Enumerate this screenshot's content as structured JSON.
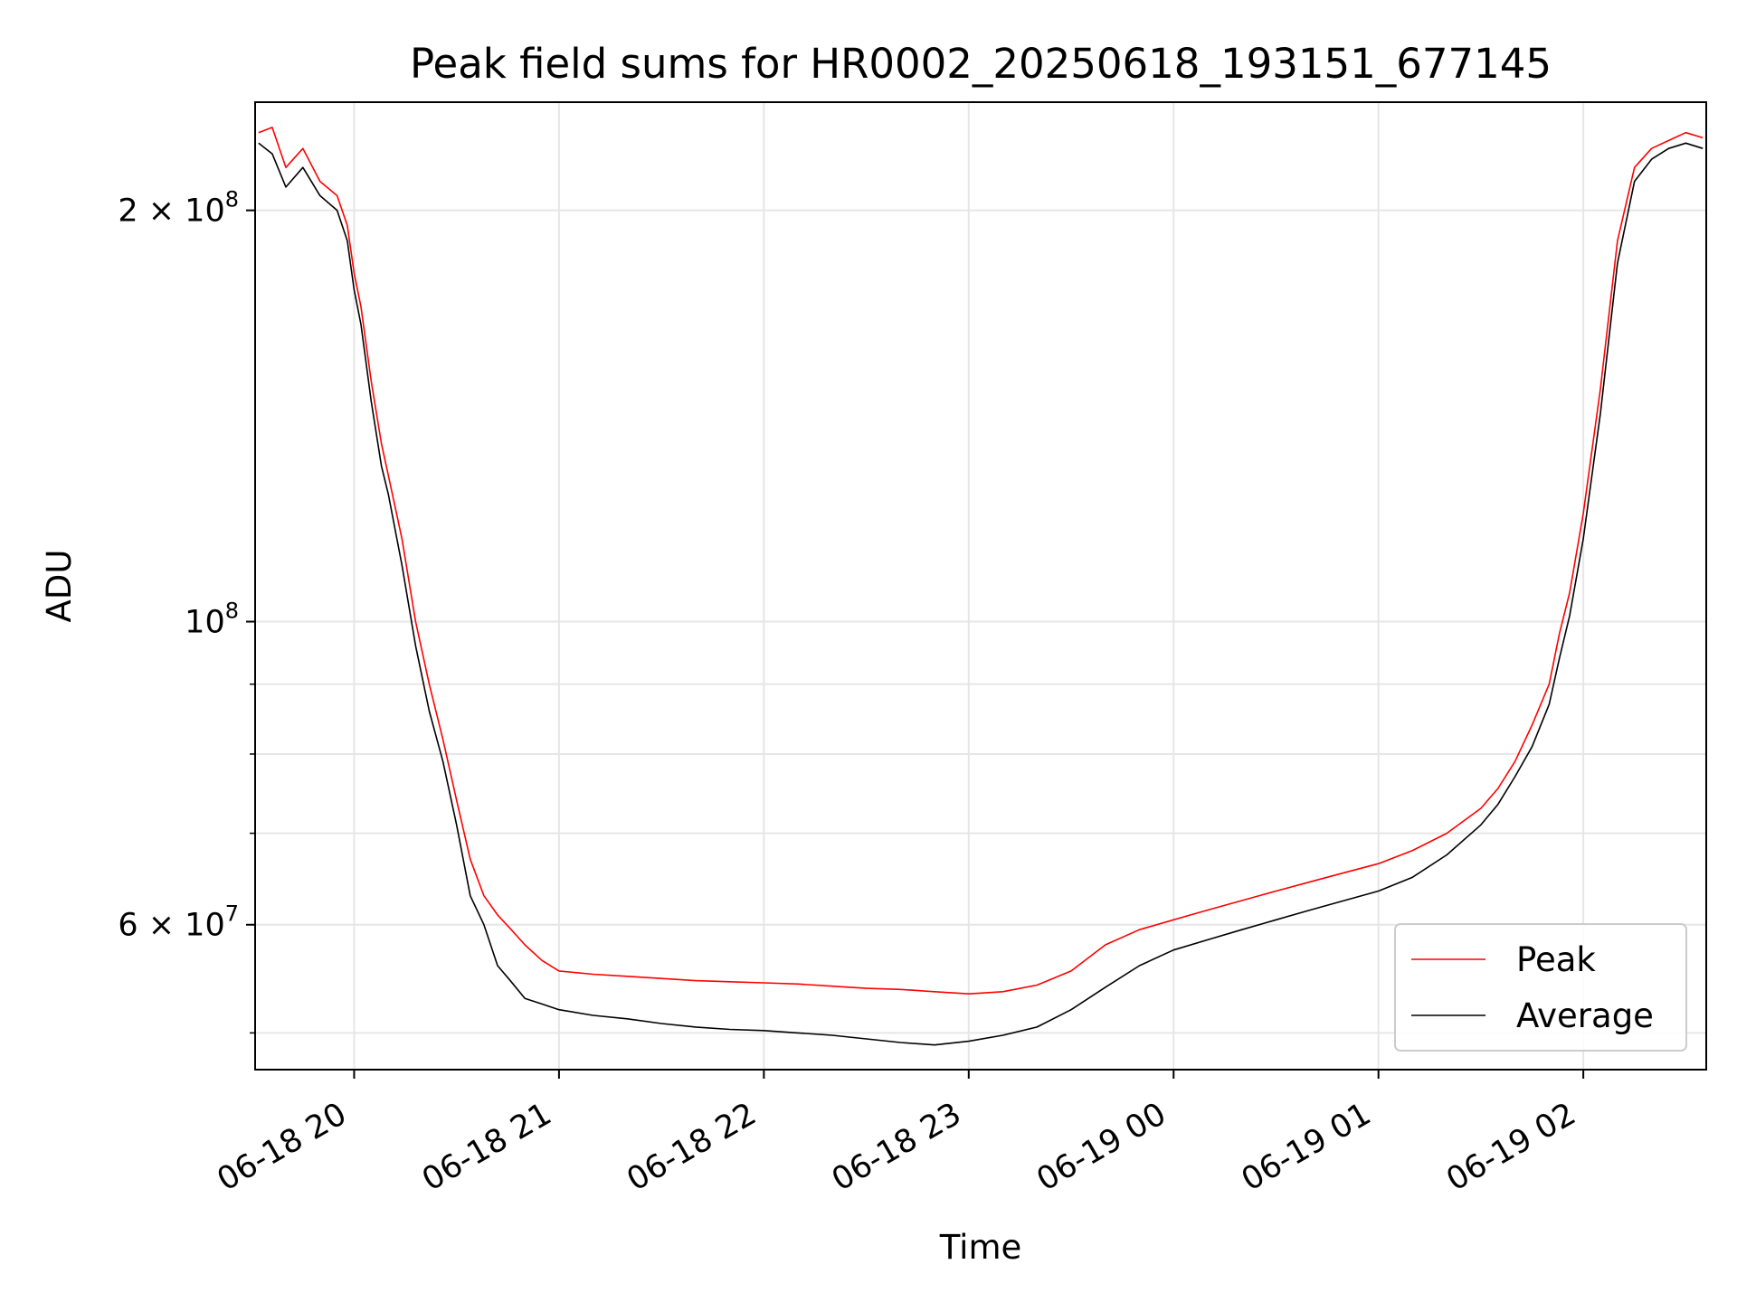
{
  "chart_data": {
    "type": "line",
    "title": "Peak field sums for HR0002_20250618_193151_677145",
    "xlabel": "Time",
    "ylabel": "ADU",
    "yscale": "log",
    "xlim": [
      "2025-06-18T19:31",
      "2025-06-19T02:36"
    ],
    "ylim": [
      47000000,
      240000000
    ],
    "grid": true,
    "legend_position": "lower-right",
    "x_tick_labels": [
      "06-18 20",
      "06-18 21",
      "06-18 22",
      "06-18 23",
      "06-19 00",
      "06-19 01",
      "06-19 02"
    ],
    "x_ticks": [
      "2025-06-18T20:00",
      "2025-06-18T21:00",
      "2025-06-18T22:00",
      "2025-06-18T23:00",
      "2025-06-19T00:00",
      "2025-06-19T01:00",
      "2025-06-19T02:00"
    ],
    "y_ticks": [
      {
        "value": 60000000,
        "label_base": "6",
        "label_exp": "7"
      },
      {
        "value": 100000000,
        "label_base": "",
        "label_exp": "8"
      },
      {
        "value": 200000000,
        "label_base": "2",
        "label_exp": "8"
      }
    ],
    "y_minor_ticks": [
      50000000,
      70000000,
      80000000,
      90000000
    ],
    "series": [
      {
        "name": "Peak",
        "color": "#ff0000",
        "x": [
          "2025-06-18T19:32",
          "2025-06-18T19:36",
          "2025-06-18T19:40",
          "2025-06-18T19:45",
          "2025-06-18T19:50",
          "2025-06-18T19:55",
          "2025-06-18T19:58",
          "2025-06-18T20:00",
          "2025-06-18T20:02",
          "2025-06-18T20:05",
          "2025-06-18T20:08",
          "2025-06-18T20:10",
          "2025-06-18T20:14",
          "2025-06-18T20:18",
          "2025-06-18T20:22",
          "2025-06-18T20:26",
          "2025-06-18T20:30",
          "2025-06-18T20:34",
          "2025-06-18T20:38",
          "2025-06-18T20:42",
          "2025-06-18T20:46",
          "2025-06-18T20:50",
          "2025-06-18T20:55",
          "2025-06-18T21:00",
          "2025-06-18T21:10",
          "2025-06-18T21:20",
          "2025-06-18T21:30",
          "2025-06-18T21:40",
          "2025-06-18T21:50",
          "2025-06-18T22:00",
          "2025-06-18T22:10",
          "2025-06-18T22:20",
          "2025-06-18T22:30",
          "2025-06-18T22:40",
          "2025-06-18T22:50",
          "2025-06-18T23:00",
          "2025-06-18T23:10",
          "2025-06-18T23:20",
          "2025-06-18T23:30",
          "2025-06-18T23:40",
          "2025-06-18T23:50",
          "2025-06-19T00:00",
          "2025-06-19T00:10",
          "2025-06-19T00:20",
          "2025-06-19T00:30",
          "2025-06-19T00:40",
          "2025-06-19T00:50",
          "2025-06-19T01:00",
          "2025-06-19T01:10",
          "2025-06-19T01:20",
          "2025-06-19T01:30",
          "2025-06-19T01:35",
          "2025-06-19T01:40",
          "2025-06-19T01:45",
          "2025-06-19T01:50",
          "2025-06-19T01:53",
          "2025-06-19T01:56",
          "2025-06-19T02:00",
          "2025-06-19T02:05",
          "2025-06-19T02:10",
          "2025-06-19T02:15",
          "2025-06-19T02:20",
          "2025-06-19T02:25",
          "2025-06-19T02:30",
          "2025-06-19T02:35"
        ],
        "values": [
          228000000,
          230000000,
          215000000,
          222000000,
          210000000,
          205000000,
          195000000,
          180000000,
          170000000,
          150000000,
          135000000,
          128000000,
          115000000,
          100000000,
          90000000,
          82000000,
          74000000,
          67000000,
          63000000,
          61000000,
          59500000,
          58000000,
          56500000,
          55500000,
          55200000,
          55000000,
          54800000,
          54600000,
          54500000,
          54400000,
          54300000,
          54100000,
          53900000,
          53800000,
          53600000,
          53400000,
          53600000,
          54200000,
          55500000,
          58000000,
          59500000,
          60500000,
          61500000,
          62500000,
          63500000,
          64500000,
          65500000,
          66500000,
          68000000,
          70000000,
          73000000,
          75500000,
          79000000,
          84000000,
          90000000,
          98000000,
          105000000,
          120000000,
          148000000,
          190000000,
          215000000,
          222000000,
          225000000,
          228000000,
          226000000
        ]
      },
      {
        "name": "Average",
        "color": "#000000",
        "x": [
          "2025-06-18T19:32",
          "2025-06-18T19:36",
          "2025-06-18T19:40",
          "2025-06-18T19:45",
          "2025-06-18T19:50",
          "2025-06-18T19:55",
          "2025-06-18T19:58",
          "2025-06-18T20:00",
          "2025-06-18T20:02",
          "2025-06-18T20:05",
          "2025-06-18T20:08",
          "2025-06-18T20:10",
          "2025-06-18T20:14",
          "2025-06-18T20:18",
          "2025-06-18T20:22",
          "2025-06-18T20:26",
          "2025-06-18T20:30",
          "2025-06-18T20:34",
          "2025-06-18T20:38",
          "2025-06-18T20:42",
          "2025-06-18T20:46",
          "2025-06-18T20:50",
          "2025-06-18T20:55",
          "2025-06-18T21:00",
          "2025-06-18T21:10",
          "2025-06-18T21:20",
          "2025-06-18T21:30",
          "2025-06-18T21:40",
          "2025-06-18T21:50",
          "2025-06-18T22:00",
          "2025-06-18T22:10",
          "2025-06-18T22:20",
          "2025-06-18T22:30",
          "2025-06-18T22:40",
          "2025-06-18T22:50",
          "2025-06-18T23:00",
          "2025-06-18T23:10",
          "2025-06-18T23:20",
          "2025-06-18T23:30",
          "2025-06-18T23:40",
          "2025-06-18T23:50",
          "2025-06-19T00:00",
          "2025-06-19T00:10",
          "2025-06-19T00:20",
          "2025-06-19T00:30",
          "2025-06-19T00:40",
          "2025-06-19T00:50",
          "2025-06-19T01:00",
          "2025-06-19T01:10",
          "2025-06-19T01:20",
          "2025-06-19T01:30",
          "2025-06-19T01:35",
          "2025-06-19T01:40",
          "2025-06-19T01:45",
          "2025-06-19T01:50",
          "2025-06-19T01:53",
          "2025-06-19T01:56",
          "2025-06-19T02:00",
          "2025-06-19T02:05",
          "2025-06-19T02:10",
          "2025-06-19T02:15",
          "2025-06-19T02:20",
          "2025-06-19T02:25",
          "2025-06-19T02:30",
          "2025-06-19T02:35"
        ],
        "values": [
          224000000,
          220000000,
          208000000,
          215000000,
          205000000,
          200000000,
          190000000,
          175000000,
          165000000,
          145000000,
          130000000,
          124000000,
          110000000,
          96000000,
          86000000,
          79000000,
          71000000,
          63000000,
          60000000,
          56000000,
          54500000,
          53000000,
          52500000,
          52000000,
          51500000,
          51200000,
          50800000,
          50500000,
          50300000,
          50200000,
          50000000,
          49800000,
          49500000,
          49200000,
          49000000,
          49300000,
          49800000,
          50500000,
          52000000,
          54000000,
          56000000,
          57500000,
          58500000,
          59500000,
          60500000,
          61500000,
          62500000,
          63500000,
          65000000,
          67500000,
          71000000,
          73500000,
          77000000,
          81000000,
          87000000,
          94000000,
          101000000,
          115000000,
          142000000,
          183000000,
          210000000,
          218000000,
          222000000,
          224000000,
          222000000
        ]
      }
    ]
  }
}
